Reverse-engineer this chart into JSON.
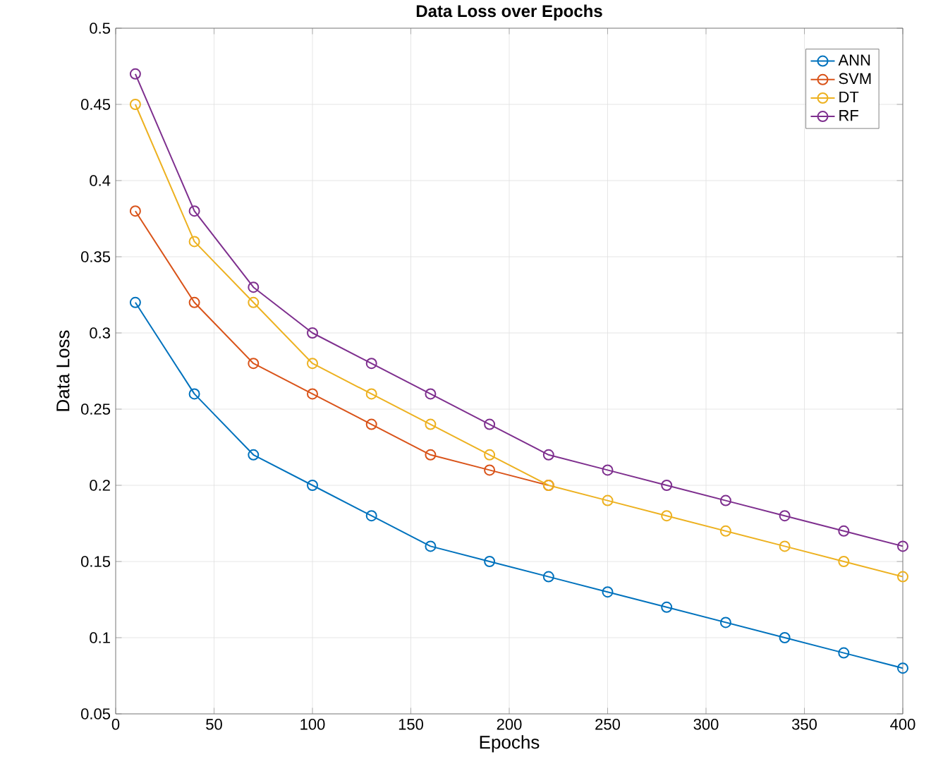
{
  "chart_data": {
    "type": "line",
    "title": "Data Loss over Epochs",
    "xlabel": "Epochs",
    "ylabel": "Data Loss",
    "x": [
      10,
      40,
      70,
      100,
      130,
      160,
      190,
      220,
      250,
      280,
      310,
      340,
      370,
      400
    ],
    "series": [
      {
        "name": "ANN",
        "color": "#0072bd",
        "values": [
          0.32,
          0.26,
          0.22,
          0.2,
          0.18,
          0.16,
          0.15,
          0.14,
          0.13,
          0.12,
          0.11,
          0.1,
          0.09,
          0.08
        ]
      },
      {
        "name": "SVM",
        "color": "#d95319",
        "values": [
          0.38,
          0.32,
          0.28,
          0.26,
          0.24,
          0.22,
          0.21,
          0.2,
          null,
          null,
          null,
          null,
          null,
          null
        ]
      },
      {
        "name": "DT",
        "color": "#edb120",
        "values": [
          0.45,
          0.36,
          0.32,
          0.28,
          0.26,
          0.24,
          0.22,
          0.2,
          0.19,
          0.18,
          0.17,
          0.16,
          0.15,
          0.14
        ]
      },
      {
        "name": "RF",
        "color": "#7e2f8e",
        "values": [
          0.47,
          0.38,
          0.33,
          0.3,
          0.28,
          0.26,
          0.24,
          0.22,
          0.21,
          0.2,
          0.19,
          0.18,
          0.17,
          0.16
        ]
      }
    ],
    "xlim": [
      0,
      400
    ],
    "xticks": [
      0,
      50,
      100,
      150,
      200,
      250,
      300,
      350,
      400
    ],
    "ylim": [
      0.05,
      0.5
    ],
    "yticks": [
      0.05,
      0.1,
      0.15,
      0.2,
      0.25,
      0.3,
      0.35,
      0.4,
      0.45,
      0.5
    ],
    "grid": true,
    "legend": "top right",
    "marker": "circle",
    "line_style": "solid"
  }
}
